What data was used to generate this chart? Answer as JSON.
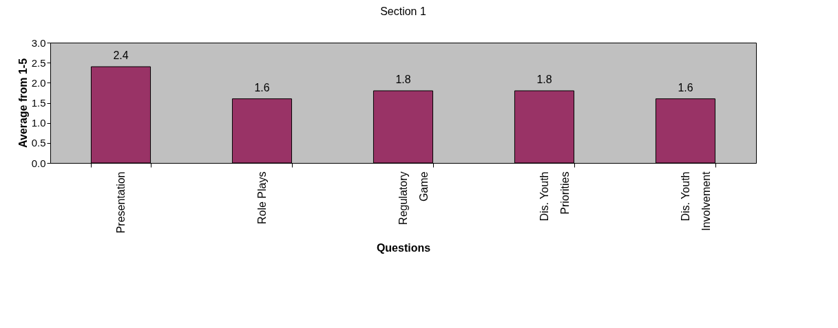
{
  "chart_data": {
    "type": "bar",
    "title": "Section 1",
    "xlabel": "Questions",
    "ylabel": "Average from 1-5",
    "categories": [
      "Presentation",
      "Role Plays",
      "Regulatory Game",
      "Dis. Youth Priorities",
      "Dis. Youth Involvement"
    ],
    "values": [
      2.4,
      1.6,
      1.8,
      1.8,
      1.6
    ],
    "color": "#993366",
    "ylim": [
      0,
      3
    ],
    "yticks": [
      {
        "value": 0,
        "label": "0.0"
      },
      0.5,
      {
        "value": 1,
        "label": "1.0"
      },
      1.5,
      {
        "value": 2,
        "label": "2.0"
      },
      2.5,
      {
        "value": 3,
        "label": "3.0"
      }
    ],
    "grid": false,
    "data_labels": true
  }
}
